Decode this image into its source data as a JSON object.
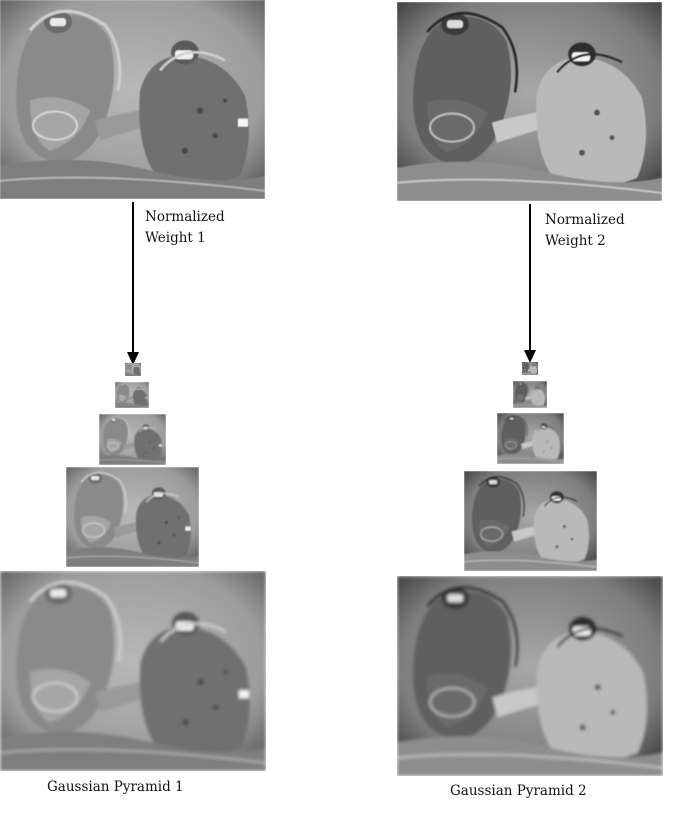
{
  "columns": [
    {
      "weight_label_line1": "Normalized",
      "weight_label_line2": "Weight 1",
      "pyramid_caption": "Gaussian Pyramid 1",
      "tone": "light"
    },
    {
      "weight_label_line1": "Normalized",
      "weight_label_line2": "Weight 2",
      "pyramid_caption": "Gaussian Pyramid 2",
      "tone": "dark"
    }
  ],
  "colors": {
    "arrow": "#000000",
    "background": "#ffffff"
  }
}
